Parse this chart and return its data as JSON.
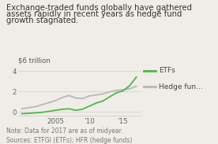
{
  "title_line1": "Exchange-traded funds globally have gathered",
  "title_line2": "assets rapidly in recent years as hedge fund",
  "title_line3": "growth stagnated.",
  "ylabel": "$6 trillion",
  "note": "Note: Data for 2017 are as of midyear.\nSources: ETFGI (ETFs); HFR (hedge funds)",
  "etf_years": [
    2000,
    2001,
    2002,
    2003,
    2004,
    2005,
    2006,
    2007,
    2008,
    2009,
    2010,
    2011,
    2012,
    2013,
    2014,
    2015,
    2016,
    2017
  ],
  "etf_values": [
    -0.18,
    -0.15,
    -0.1,
    -0.05,
    0.05,
    0.15,
    0.25,
    0.3,
    0.15,
    0.25,
    0.55,
    0.85,
    1.05,
    1.45,
    1.85,
    2.05,
    2.55,
    3.4
  ],
  "hedge_years": [
    2000,
    2001,
    2002,
    2003,
    2004,
    2005,
    2006,
    2007,
    2008,
    2009,
    2010,
    2011,
    2012,
    2013,
    2014,
    2015,
    2016,
    2017
  ],
  "hedge_values": [
    0.3,
    0.4,
    0.5,
    0.7,
    0.9,
    1.1,
    1.4,
    1.6,
    1.35,
    1.3,
    1.55,
    1.65,
    1.75,
    1.95,
    2.1,
    2.15,
    2.25,
    2.5
  ],
  "etf_color": "#4cb944",
  "hedge_color": "#b8b8b8",
  "bg_color": "#f0ede8",
  "title_color": "#333333",
  "note_color": "#777777",
  "ylabel_color": "#555555",
  "ylim": [
    -0.4,
    4.6
  ],
  "yticks": [
    0,
    2,
    4
  ],
  "xticks": [
    2005,
    2010,
    2015
  ],
  "xticklabels": [
    "2005",
    "’10",
    "’15"
  ],
  "xlim": [
    1999.5,
    2017.8
  ],
  "legend_etf": "ETFs",
  "legend_hedge": "Hedge fun...",
  "title_fontsize": 7.2,
  "note_fontsize": 5.5,
  "ylabel_fontsize": 6.2,
  "tick_fontsize": 6.2,
  "legend_fontsize": 6.5
}
